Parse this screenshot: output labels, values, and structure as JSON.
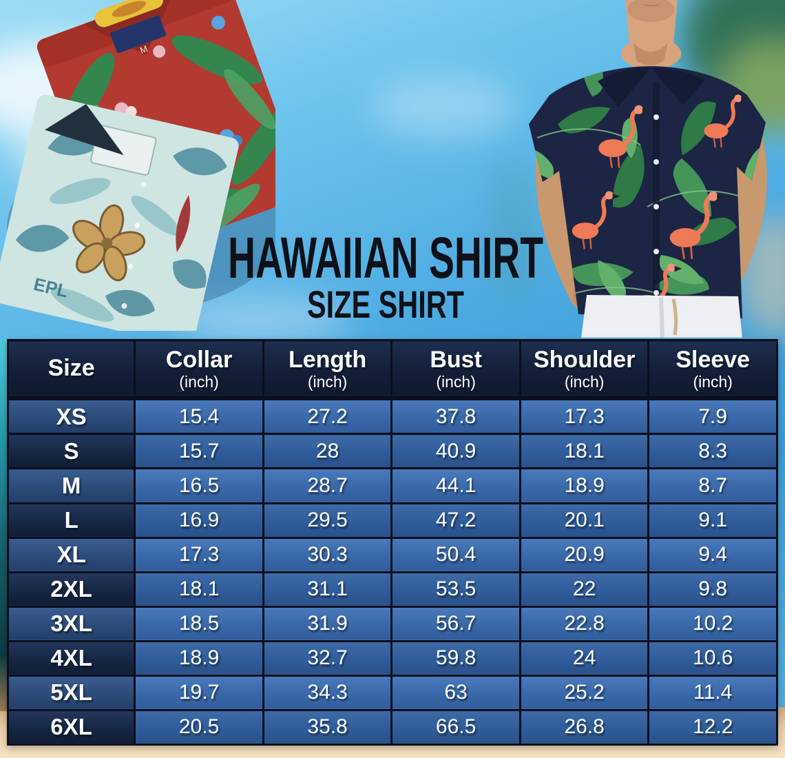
{
  "title": {
    "main": "HAWAIIAN SHIRT",
    "sub": "SIZE SHIRT"
  },
  "images": {
    "left_photo": "two-folded-hawaiian-shirts-red-and-teal",
    "right_photo": "man-wearing-navy-flamingo-hawaiian-shirt",
    "red_shirt_tag": "M"
  },
  "colors": {
    "sky_top": "#9ddcf5",
    "sky_bottom": "#3d9bd4",
    "sand": "#e9cda4",
    "table_border": "#0a0f1c",
    "header_bg": "#131f38",
    "row_value_light": "#3a67a8",
    "row_value_dark": "#305c9b",
    "row_size_light": "#2c4b78",
    "row_size_dark": "#162743",
    "title_color": "#0e1118",
    "table_text": "#ffffff",
    "teal_edge": "#2496a6"
  },
  "chart_data": {
    "type": "table",
    "title": "HAWAIIAN SHIRT",
    "subtitle": "SIZE SHIRT",
    "columns": [
      {
        "label": "Size",
        "unit": ""
      },
      {
        "label": "Collar",
        "unit": "(inch)"
      },
      {
        "label": "Length",
        "unit": "(inch)"
      },
      {
        "label": "Bust",
        "unit": "(inch)"
      },
      {
        "label": "Shoulder",
        "unit": "(inch)"
      },
      {
        "label": "Sleeve",
        "unit": "(inch)"
      }
    ],
    "rows": [
      {
        "size": "XS",
        "values": [
          "15.4",
          "27.2",
          "37.8",
          "17.3",
          "7.9"
        ]
      },
      {
        "size": "S",
        "values": [
          "15.7",
          "28",
          "40.9",
          "18.1",
          "8.3"
        ]
      },
      {
        "size": "M",
        "values": [
          "16.5",
          "28.7",
          "44.1",
          "18.9",
          "8.7"
        ]
      },
      {
        "size": "L",
        "values": [
          "16.9",
          "29.5",
          "47.2",
          "20.1",
          "9.1"
        ]
      },
      {
        "size": "XL",
        "values": [
          "17.3",
          "30.3",
          "50.4",
          "20.9",
          "9.4"
        ]
      },
      {
        "size": "2XL",
        "values": [
          "18.1",
          "31.1",
          "53.5",
          "22",
          "9.8"
        ]
      },
      {
        "size": "3XL",
        "values": [
          "18.5",
          "31.9",
          "56.7",
          "22.8",
          "10.2"
        ]
      },
      {
        "size": "4XL",
        "values": [
          "18.9",
          "32.7",
          "59.8",
          "24",
          "10.6"
        ]
      },
      {
        "size": "5XL",
        "values": [
          "19.7",
          "34.3",
          "63",
          "25.2",
          "11.4"
        ]
      },
      {
        "size": "6XL",
        "values": [
          "20.5",
          "35.8",
          "66.5",
          "26.8",
          "12.2"
        ]
      }
    ]
  }
}
